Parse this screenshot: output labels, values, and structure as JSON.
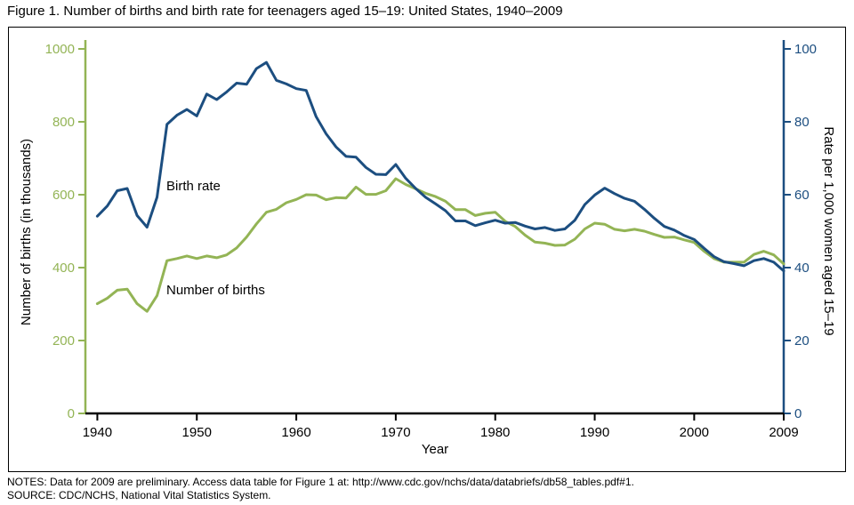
{
  "title": "Figure 1. Number of births and birth rate for teenagers aged 15–19: United States, 1940–2009",
  "notes": {
    "line1": "NOTES: Data for 2009 are preliminary. Access data table for Figure 1 at: http://www.cdc.gov/nchs/data/databriefs/db58_tables.pdf#1.",
    "line2": "SOURCE: CDC/NCHS, National Vital Statistics System."
  },
  "colors": {
    "births_green": "#93B455",
    "rate_blue": "#1C4E80",
    "axis_black": "#000000"
  },
  "chart_data": {
    "type": "line",
    "title": "Figure 1. Number of births and birth rate for teenagers aged 15–19: United States, 1940–2009",
    "xlabel": "Year",
    "grid": false,
    "legend": "inline-labels",
    "left_axis": {
      "label": "Number of births (in thousands)",
      "min": 0,
      "max": 1000,
      "ticks": [
        0,
        200,
        400,
        600,
        800,
        1000
      ]
    },
    "right_axis": {
      "label": "Rate per 1,000 women aged 15–19",
      "min": 0,
      "max": 100,
      "ticks": [
        0,
        20,
        40,
        60,
        80,
        100
      ]
    },
    "x_ticks": [
      1940,
      1950,
      1960,
      1970,
      1980,
      1990,
      2000,
      2009
    ],
    "years": [
      1940,
      1941,
      1942,
      1943,
      1944,
      1945,
      1946,
      1947,
      1948,
      1949,
      1950,
      1951,
      1952,
      1953,
      1954,
      1955,
      1956,
      1957,
      1958,
      1959,
      1960,
      1961,
      1962,
      1963,
      1964,
      1965,
      1966,
      1967,
      1968,
      1969,
      1970,
      1971,
      1972,
      1973,
      1974,
      1975,
      1976,
      1977,
      1978,
      1979,
      1980,
      1981,
      1982,
      1983,
      1984,
      1985,
      1986,
      1987,
      1988,
      1989,
      1990,
      1991,
      1992,
      1993,
      1994,
      1995,
      1996,
      1997,
      1998,
      1999,
      2000,
      2001,
      2002,
      2003,
      2004,
      2005,
      2006,
      2007,
      2008,
      2009
    ],
    "series": [
      {
        "name": "Number of births",
        "axis": "left",
        "units": "thousands",
        "values": [
          301,
          316,
          338,
          341,
          301,
          280,
          323,
          419,
          425,
          432,
          425,
          432,
          427,
          435,
          454,
          484,
          520,
          552,
          560,
          578,
          587,
          600,
          599,
          586,
          592,
          591,
          621,
          601,
          601,
          611,
          644,
          628,
          616,
          604,
          595,
          582,
          559,
          559,
          543,
          549,
          552,
          527,
          513,
          489,
          470,
          467,
          461,
          462,
          478,
          506,
          522,
          519,
          505,
          501,
          505,
          500,
          491,
          483,
          484,
          476,
          469,
          445,
          425,
          415,
          415,
          415,
          436,
          445,
          435,
          410
        ]
      },
      {
        "name": "Birth rate",
        "axis": "right",
        "units": "per 1,000 women aged 15–19",
        "values": [
          54.1,
          56.9,
          61.1,
          61.7,
          54.3,
          51.1,
          59.3,
          79.3,
          81.8,
          83.4,
          81.6,
          87.6,
          86.1,
          88.2,
          90.6,
          90.3,
          94.6,
          96.3,
          91.4,
          90.4,
          89.1,
          88.6,
          81.4,
          76.7,
          73.1,
          70.5,
          70.3,
          67.5,
          65.6,
          65.5,
          68.3,
          64.5,
          61.7,
          59.3,
          57.5,
          55.6,
          52.8,
          52.8,
          51.5,
          52.3,
          53.0,
          52.2,
          52.4,
          51.4,
          50.6,
          51.0,
          50.2,
          50.6,
          53.0,
          57.3,
          59.9,
          61.8,
          60.3,
          59.0,
          58.2,
          56.0,
          53.5,
          51.3,
          50.3,
          48.8,
          47.7,
          45.3,
          43.0,
          41.6,
          41.1,
          40.5,
          41.9,
          42.5,
          41.5,
          39.1
        ]
      }
    ]
  }
}
